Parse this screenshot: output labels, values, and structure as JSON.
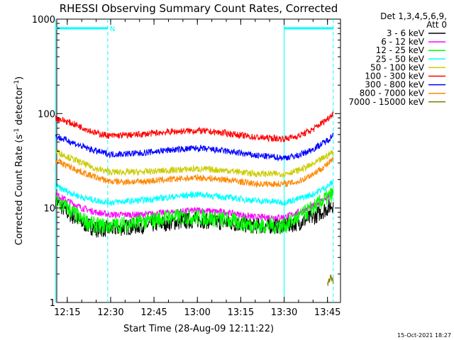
{
  "chart_data": {
    "type": "line",
    "title": "RHESSI Observing Summary Count Rates, Corrected",
    "ylabel": "Corrected Count Rate (s",
    "ylabel_sup1": "-1",
    "ylabel_mid": " detector",
    "ylabel_sup2": "-1",
    "ylabel_end": ")",
    "xlabel": "Start Time (28-Aug-09 12:11:22)",
    "y_scale": "log",
    "ylim": [
      1,
      1000
    ],
    "y_ticks": [
      1,
      10,
      100,
      1000
    ],
    "y_tick_labels": [
      "1",
      "10",
      "100",
      "1000"
    ],
    "x_range_minutes": [
      "12:11:22",
      "13:49:30"
    ],
    "x_ticks": [
      "12:15",
      "12:30",
      "12:45",
      "13:00",
      "13:15",
      "13:30",
      "13:45"
    ],
    "legend_header": [
      "Det 1,3,4,5,6,9,",
      "Att 0"
    ],
    "legend_position": "right",
    "series": [
      {
        "name": "3 - 6 keV",
        "color": "#000000",
        "x": [
          "12:11",
          "12:15",
          "12:20",
          "12:25",
          "12:30",
          "12:40",
          "12:50",
          "13:00",
          "13:10",
          "13:20",
          "13:30",
          "13:35",
          "13:40",
          "13:45",
          "13:47"
        ],
        "values": [
          12,
          9,
          7,
          6,
          6,
          6.5,
          7,
          7.5,
          7,
          6.5,
          6.5,
          7,
          8,
          10,
          11
        ]
      },
      {
        "name": "6 - 12 keV",
        "color": "#ff00ff",
        "x": [
          "12:11",
          "12:15",
          "12:20",
          "12:25",
          "12:30",
          "12:40",
          "12:50",
          "13:00",
          "13:10",
          "13:20",
          "13:30",
          "13:35",
          "13:40",
          "13:45",
          "13:47"
        ],
        "values": [
          14,
          12,
          10,
          9,
          8.5,
          8.5,
          9,
          9.5,
          9,
          8,
          8,
          9,
          10.5,
          13,
          15
        ]
      },
      {
        "name": "12 - 25 keV",
        "color": "#00ff00",
        "x": [
          "12:11",
          "12:15",
          "12:20",
          "12:25",
          "12:30",
          "12:40",
          "12:50",
          "13:00",
          "13:10",
          "13:20",
          "13:30",
          "13:35",
          "13:40",
          "13:45",
          "13:47"
        ],
        "values": [
          12,
          10,
          7.5,
          6.5,
          6.5,
          7,
          8,
          8,
          7.5,
          6.5,
          6.5,
          8,
          10,
          13,
          14
        ]
      },
      {
        "name": "25 - 50 keV",
        "color": "#00ffff",
        "x": [
          "12:11",
          "12:15",
          "12:20",
          "12:25",
          "12:30",
          "12:40",
          "12:50",
          "13:00",
          "13:10",
          "13:20",
          "13:30",
          "13:35",
          "13:40",
          "13:45",
          "13:47"
        ],
        "values": [
          17,
          15,
          13,
          12,
          11.5,
          12,
          13,
          14,
          13,
          12,
          11.5,
          12.5,
          14,
          17,
          19
        ]
      },
      {
        "name": "50 - 100 keV",
        "color": "#cccc00",
        "x": [
          "12:11",
          "12:15",
          "12:20",
          "12:25",
          "12:30",
          "12:40",
          "12:50",
          "13:00",
          "13:10",
          "13:20",
          "13:30",
          "13:35",
          "13:40",
          "13:45",
          "13:47"
        ],
        "values": [
          40,
          35,
          30,
          26,
          24,
          24,
          25,
          26,
          25,
          23,
          23,
          25,
          29,
          36,
          40
        ]
      },
      {
        "name": "100 - 300 keV",
        "color": "#ff0000",
        "x": [
          "12:11",
          "12:15",
          "12:20",
          "12:25",
          "12:30",
          "12:40",
          "12:50",
          "13:00",
          "13:10",
          "13:20",
          "13:30",
          "13:35",
          "13:40",
          "13:45",
          "13:47"
        ],
        "values": [
          90,
          82,
          72,
          62,
          58,
          60,
          64,
          66,
          62,
          56,
          54,
          58,
          68,
          88,
          102
        ]
      },
      {
        "name": "300 - 800 keV",
        "color": "#0000ff",
        "x": [
          "12:11",
          "12:15",
          "12:20",
          "12:25",
          "12:30",
          "12:40",
          "12:50",
          "13:00",
          "13:10",
          "13:20",
          "13:30",
          "13:35",
          "13:40",
          "13:45",
          "13:47"
        ],
        "values": [
          57,
          52,
          45,
          40,
          37,
          38,
          41,
          43,
          40,
          36,
          34,
          36,
          42,
          52,
          60
        ]
      },
      {
        "name": "800 - 7000 keV",
        "color": "#ff8800",
        "x": [
          "12:11",
          "12:15",
          "12:20",
          "12:25",
          "12:30",
          "12:40",
          "12:50",
          "13:00",
          "13:10",
          "13:20",
          "13:30",
          "13:35",
          "13:40",
          "13:45",
          "13:47"
        ],
        "values": [
          32,
          28,
          24,
          21,
          19,
          19,
          20,
          21,
          20,
          18,
          18,
          19,
          23,
          29,
          33
        ]
      },
      {
        "name": "7000 - 15000 keV",
        "color": "#808000",
        "x": [
          "13:45",
          "13:46",
          "13:47"
        ],
        "values": [
          1.5,
          1.9,
          1.7
        ]
      }
    ],
    "markers": {
      "flag_label": "N",
      "flag_color": "#00ffff",
      "flag_y": 800,
      "flag_intervals": [
        [
          "12:11",
          "12:29"
        ],
        [
          "13:30",
          "13:47"
        ]
      ],
      "dashed_lines": [
        "12:29",
        "13:47"
      ],
      "solid_lines": [
        "12:11",
        "13:30"
      ]
    },
    "footer_timestamp": "15-Oct-2021 18:27"
  }
}
